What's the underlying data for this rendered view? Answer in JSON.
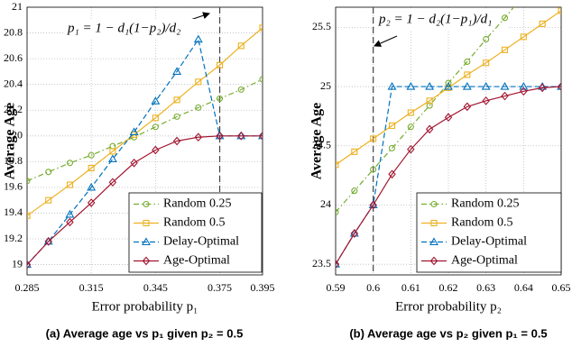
{
  "chart_data": [
    {
      "type": "line",
      "ylabel": "Average Age",
      "xlabel": "Error probability p₁",
      "caption": "(a) Average age vs p₁ given p₂ = 0.5",
      "annotation": "p₁ = 1 − d₁(1−p₂)/d₂",
      "vline": 0.375,
      "x": [
        0.285,
        0.295,
        0.305,
        0.315,
        0.325,
        0.335,
        0.345,
        0.355,
        0.365,
        0.375,
        0.385,
        0.395
      ],
      "xlim": [
        0.285,
        0.395
      ],
      "xticks": [
        0.285,
        0.315,
        0.345,
        0.375,
        0.395
      ],
      "ylim": [
        18.92,
        21
      ],
      "yticks": [
        19,
        19.2,
        19.4,
        19.6,
        19.8,
        20,
        20.2,
        20.4,
        20.6,
        20.8,
        21
      ],
      "grid": true,
      "legend": "lower right",
      "series": [
        {
          "name": "Random 0.25",
          "color": "#77ac30",
          "marker": "circle",
          "linestyle": "dashdot",
          "values": [
            19.65,
            19.72,
            19.79,
            19.85,
            19.92,
            19.99,
            20.07,
            20.15,
            20.22,
            20.29,
            20.36,
            20.44
          ]
        },
        {
          "name": "Random 0.5",
          "color": "#edb120",
          "marker": "square",
          "linestyle": "solid",
          "values": [
            19.38,
            19.5,
            19.62,
            19.75,
            19.88,
            20.01,
            20.14,
            20.28,
            20.42,
            20.55,
            20.7,
            20.84
          ]
        },
        {
          "name": "Delay-Optimal",
          "color": "#0072bd",
          "marker": "triangle",
          "linestyle": "dashed",
          "values": [
            19.0,
            19.18,
            19.39,
            19.6,
            19.82,
            20.03,
            20.27,
            20.5,
            20.75,
            20.0,
            20.0,
            20.0
          ]
        },
        {
          "name": "Age-Optimal",
          "color": "#a2142f",
          "marker": "diamond",
          "linestyle": "solid",
          "values": [
            19.0,
            19.18,
            19.33,
            19.48,
            19.64,
            19.79,
            19.89,
            19.96,
            19.99,
            20.0,
            20.0,
            20.0
          ]
        }
      ]
    },
    {
      "type": "line",
      "ylabel": "Average Age",
      "xlabel": "Error probability p₂",
      "caption": "(b) Average age vs p₂ given p₁ = 0.5",
      "annotation": "p₂ = 1 − d₂(1−p₁)/d₁",
      "vline": 0.6,
      "x": [
        0.59,
        0.595,
        0.6,
        0.605,
        0.61,
        0.615,
        0.62,
        0.625,
        0.63,
        0.635,
        0.64,
        0.645,
        0.65
      ],
      "xlim": [
        0.59,
        0.65
      ],
      "xticks": [
        0.59,
        0.6,
        0.61,
        0.62,
        0.63,
        0.64,
        0.65
      ],
      "ylim": [
        23.41,
        25.67
      ],
      "yticks": [
        23.5,
        24,
        24.5,
        25,
        25.5
      ],
      "grid": true,
      "legend": "lower right",
      "series": [
        {
          "name": "Random 0.25",
          "color": "#77ac30",
          "marker": "circle",
          "linestyle": "dashdot",
          "values": [
            23.94,
            24.12,
            24.3,
            24.48,
            24.66,
            24.84,
            25.03,
            25.21,
            25.4,
            25.58,
            25.77,
            null,
            null
          ]
        },
        {
          "name": "Random 0.5",
          "color": "#edb120",
          "marker": "square",
          "linestyle": "solid",
          "values": [
            24.34,
            24.45,
            24.56,
            24.67,
            24.78,
            24.88,
            24.99,
            25.1,
            25.2,
            25.31,
            25.42,
            25.53,
            25.64
          ]
        },
        {
          "name": "Delay-Optimal",
          "color": "#0072bd",
          "marker": "triangle",
          "linestyle": "dashed",
          "values": [
            23.5,
            23.76,
            24.0,
            25.0,
            25.0,
            25.0,
            25.0,
            25.0,
            25.0,
            25.0,
            25.0,
            25.0,
            25.0
          ]
        },
        {
          "name": "Age-Optimal",
          "color": "#a2142f",
          "marker": "diamond",
          "linestyle": "solid",
          "values": [
            23.5,
            23.76,
            24.0,
            24.26,
            24.47,
            24.64,
            24.74,
            24.83,
            24.88,
            24.92,
            24.96,
            24.99,
            25.0
          ]
        }
      ]
    }
  ]
}
